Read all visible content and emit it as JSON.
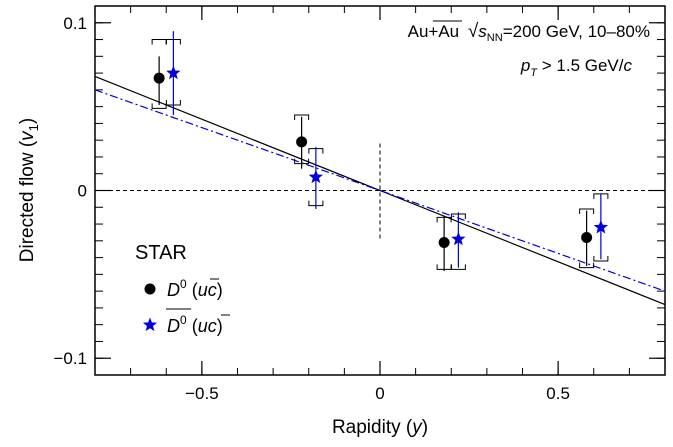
{
  "chart_data": {
    "type": "scatter",
    "xlabel": "Rapidity (y)",
    "xlabel_parts": {
      "main": "Rapidity (",
      "var": "y",
      "close": ")"
    },
    "ylabel": "Directed flow (v1)",
    "ylabel_parts": {
      "main": "Directed flow (",
      "var": "v",
      "sub": "1",
      "close": ")"
    },
    "xlim": [
      -0.8,
      0.8
    ],
    "ylim": [
      -0.11,
      0.11
    ],
    "x_ticks": [
      -0.5,
      0,
      0.5
    ],
    "x_tick_labels": [
      "−0.5",
      "0",
      "0.5"
    ],
    "y_ticks": [
      -0.1,
      0,
      0.1
    ],
    "y_tick_labels": [
      "−0.1",
      "0",
      "0.1"
    ],
    "grid": false,
    "annotations": {
      "system": "Au+Au",
      "energy_symbol": "s",
      "energy_sub": "NN",
      "energy_value": "=200 GeV, 10–80%",
      "pt_symbol": "p",
      "pt_sub": "T",
      "pt_cut": " > 1.5 GeV/",
      "pt_unit": "c"
    },
    "legend": {
      "title": "STAR",
      "placement": "bottom-left",
      "entries": [
        {
          "particle": "D",
          "sup": "0",
          "quark_pre": " (",
          "quark_a": "u",
          "quark_b": "c",
          "quark_post": ")",
          "bar": "a"
        },
        {
          "particle": "D",
          "sup": "0",
          "quark_pre": " (",
          "quark_a": "u",
          "quark_b": "c",
          "quark_post": ")",
          "bar": "b"
        }
      ]
    },
    "series": [
      {
        "marker": "circle",
        "color": "#000000",
        "points": [
          {
            "x": -0.62,
            "y": 0.067,
            "stat": [
              0.051,
              0.08
            ],
            "sys": [
              0.049,
              0.09
            ]
          },
          {
            "x": -0.22,
            "y": 0.029,
            "stat": [
              0.013,
              0.044
            ],
            "sys": [
              0.016,
              0.045
            ]
          },
          {
            "x": 0.18,
            "y": -0.031,
            "stat": [
              -0.048,
              -0.015
            ],
            "sys": [
              -0.047,
              -0.016
            ]
          },
          {
            "x": 0.58,
            "y": -0.028,
            "stat": [
              -0.045,
              -0.012
            ],
            "sys": [
              -0.046,
              -0.011
            ]
          }
        ],
        "fit": {
          "slope": -0.085,
          "intercept": 0,
          "x_range": [
            -0.8,
            0.8
          ],
          "style": "solid"
        }
      },
      {
        "marker": "star",
        "color": "#0000dd",
        "points": [
          {
            "x": -0.58,
            "y": 0.07,
            "stat": [
              0.045,
              0.095
            ],
            "sys": [
              0.051,
              0.09
            ]
          },
          {
            "x": -0.18,
            "y": 0.008,
            "stat": [
              -0.011,
              0.026
            ],
            "sys": [
              -0.009,
              0.025
            ]
          },
          {
            "x": 0.22,
            "y": -0.029,
            "stat": [
              -0.046,
              -0.013
            ],
            "sys": [
              -0.047,
              -0.014
            ]
          },
          {
            "x": 0.62,
            "y": -0.022,
            "stat": [
              -0.041,
              -0.002
            ],
            "sys": [
              -0.042,
              -0.002
            ]
          }
        ],
        "fit": {
          "slope": -0.075,
          "intercept": 0,
          "x_range": [
            -0.8,
            0.8
          ],
          "style": "dashdot"
        }
      }
    ]
  }
}
